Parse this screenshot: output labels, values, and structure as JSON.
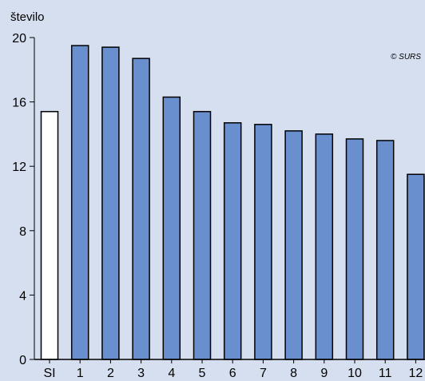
{
  "chart_data": {
    "type": "bar",
    "ylabel": "število",
    "copyright": "© SURS",
    "categories": [
      "SI",
      "1",
      "2",
      "3",
      "4",
      "5",
      "6",
      "7",
      "8",
      "9",
      "10",
      "11",
      "12"
    ],
    "values": [
      15.4,
      19.5,
      19.4,
      18.7,
      16.3,
      15.4,
      14.7,
      14.6,
      14.2,
      14.0,
      13.7,
      13.6,
      11.5
    ],
    "ylim": [
      0,
      20
    ],
    "yticks": [
      0,
      4,
      8,
      12,
      16,
      20
    ],
    "highlight_category": "SI",
    "grid": false,
    "colors": {
      "bar": "#6a8fcf",
      "highlight": "#ffffff",
      "background": "#d6dff0",
      "stroke": "#000000"
    }
  }
}
